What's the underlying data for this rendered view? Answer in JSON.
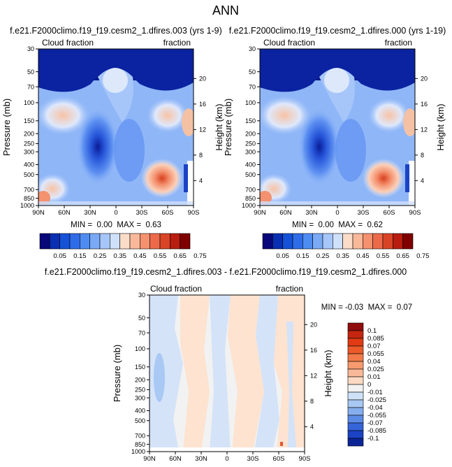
{
  "figure_title": "ANN",
  "chart_data": [
    {
      "type": "heatmap",
      "title": "f.e21.F2000climo.f19_f19.cesm2_1.dfires.003 (yrs 1-9)",
      "left_label": "Cloud fraction",
      "right_label": "fraction",
      "ylabel": "Pressure (mb)",
      "ylabel_right": "Height (km)",
      "x_ticks": [
        "90N",
        "60N",
        "30N",
        "0",
        "30S",
        "60S",
        "90S"
      ],
      "y_ticks": [
        "30",
        "50",
        "70",
        "100",
        "150",
        "200",
        "250",
        "300",
        "400",
        "500",
        "700",
        "850",
        "1000"
      ],
      "y_ticks_right": [
        "20",
        "16",
        "12",
        "8",
        "4"
      ],
      "stats": "MIN =  0.00  MAX =  0.63",
      "min": 0.0,
      "max": 0.63
    },
    {
      "type": "heatmap",
      "title": "f.e21.F2000climo.f19_f19.cesm2_1.dfires.000 (yrs 1-19)",
      "left_label": "Cloud fraction",
      "right_label": "fraction",
      "ylabel": "Pressure (mb)",
      "ylabel_right": "Height (km)",
      "x_ticks": [
        "90N",
        "60N",
        "30N",
        "0",
        "30S",
        "60S",
        "90S"
      ],
      "y_ticks": [
        "30",
        "50",
        "70",
        "100",
        "150",
        "200",
        "250",
        "300",
        "400",
        "500",
        "700",
        "850",
        "1000"
      ],
      "y_ticks_right": [
        "20",
        "16",
        "12",
        "8",
        "4"
      ],
      "stats": "MIN =  0.00  MAX =  0.62",
      "min": 0.0,
      "max": 0.62
    },
    {
      "type": "heatmap",
      "title": "f.e21.F2000climo.f19_f19.cesm2_1.dfires.003 - f.e21.F2000climo.f19_f19.cesm2_1.dfires.000",
      "left_label": "Cloud fraction",
      "right_label": "fraction",
      "ylabel": "Pressure (mb)",
      "ylabel_right": "Height (km)",
      "x_ticks": [
        "90N",
        "60N",
        "30N",
        "0",
        "30S",
        "60S",
        "90S"
      ],
      "y_ticks": [
        "30",
        "50",
        "70",
        "100",
        "150",
        "200",
        "250",
        "300",
        "400",
        "500",
        "700",
        "850",
        "1000"
      ],
      "y_ticks_right": [
        "20",
        "16",
        "12",
        "8",
        "4"
      ],
      "stats": "MIN = -0.03  MAX =  0.07",
      "min": -0.03,
      "max": 0.07
    }
  ],
  "colorbar_abs": {
    "labels": [
      "0.05",
      "0.15",
      "0.25",
      "0.35",
      "0.45",
      "0.55",
      "0.65",
      "0.75"
    ],
    "colors": [
      "#08087a",
      "#0a2fb2",
      "#1552d8",
      "#2f6ce8",
      "#4e8cf2",
      "#7aaaf6",
      "#a6c6fa",
      "#cfe0fb",
      "#fbdcc8",
      "#f9b89a",
      "#f4916f",
      "#ec6a4a",
      "#d94426",
      "#b81d0f",
      "#800000"
    ]
  },
  "colorbar_diff": {
    "labels": [
      "0.1",
      "0.085",
      "0.07",
      "0.055",
      "0.04",
      "0.025",
      "0.01",
      "0",
      "-0.01",
      "-0.025",
      "-0.04",
      "-0.055",
      "-0.07",
      "-0.085",
      "-0.1"
    ],
    "colors": [
      "#8f0d0d",
      "#c4260f",
      "#e03b14",
      "#ec5a2a",
      "#f27a48",
      "#f79a6e",
      "#f9b999",
      "#fbd9c2",
      "#f2f2f2",
      "#cfe1f7",
      "#a9c8f3",
      "#86aeee",
      "#5c8be6",
      "#3665da",
      "#1b43c4",
      "#0c2596"
    ]
  }
}
